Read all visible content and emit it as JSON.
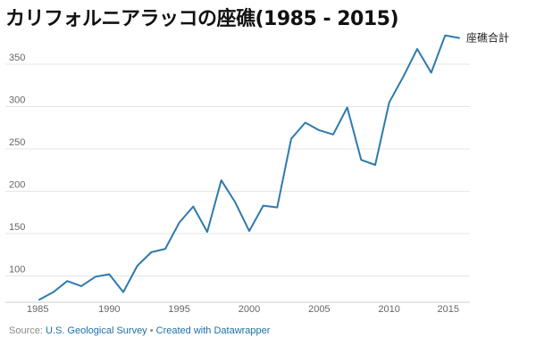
{
  "chart_data": {
    "type": "line",
    "title": "カリフォルニアラッコの座礁(1985 - 2015)",
    "xlabel": "",
    "ylabel": "",
    "x": [
      1985,
      1986,
      1987,
      1988,
      1989,
      1990,
      1991,
      1992,
      1993,
      1994,
      1995,
      1996,
      1997,
      1998,
      1999,
      2000,
      2001,
      2002,
      2003,
      2004,
      2005,
      2006,
      2007,
      2008,
      2009,
      2010,
      2011,
      2012,
      2013,
      2014,
      2015
    ],
    "series": [
      {
        "name": "座礁合計",
        "color": "#2e7aad",
        "values": [
          72,
          81,
          94,
          88,
          99,
          102,
          81,
          112,
          128,
          132,
          163,
          182,
          152,
          213,
          187,
          153,
          183,
          181,
          262,
          281,
          272,
          267,
          299,
          237,
          231,
          305,
          335,
          368,
          340,
          384,
          381
        ]
      }
    ],
    "xlim": [
      1985,
      2015
    ],
    "ylim": [
      70,
      390
    ],
    "y_ticks": [
      "100",
      "150",
      "200",
      "250",
      "300",
      "350"
    ],
    "x_ticks": [
      "1985",
      "1990",
      "1995",
      "2000",
      "2005",
      "2010",
      "2015"
    ],
    "grid": true,
    "legend": "direct label at line end"
  },
  "source": {
    "prefix": "Source: ",
    "name": "U.S. Geological Survey",
    "separator": " • ",
    "credit": "Created with Datawrapper"
  }
}
